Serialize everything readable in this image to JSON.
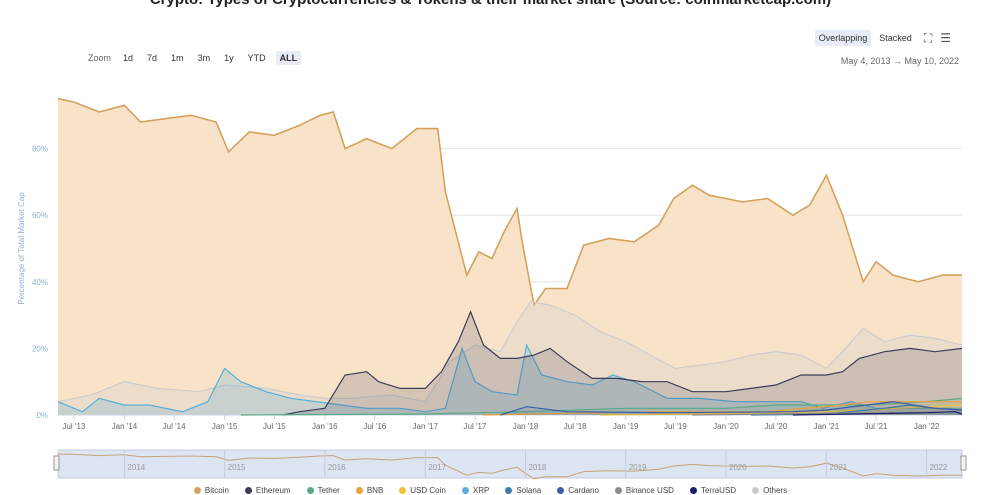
{
  "header": {
    "title": "Crypto: Types of Cryptocurrencies & Tokens & their market share (Source: coinmarketcap.com)"
  },
  "toolbar": {
    "zoom_label": "Zoom",
    "zoom_options": [
      "1d",
      "7d",
      "1m",
      "3m",
      "1y",
      "YTD",
      "ALL"
    ],
    "zoom_selected": "ALL",
    "range_text": "May 4, 2013  →  May 10, 2022",
    "mode_overlapping": "Overlapping",
    "mode_stacked": "Stacked",
    "mode_selected": "Overlapping",
    "fullscreen_icon": "expand-icon",
    "menu_icon": "hamburger-icon"
  },
  "chart_data": {
    "type": "area",
    "ylabel": "Percentage of Total Market Cap",
    "ylim": [
      0,
      100
    ],
    "yticks": [
      "0%",
      "20%",
      "40%",
      "60%",
      "80%"
    ],
    "xticks": [
      "Jul '13",
      "Jan '14",
      "Jul '14",
      "Jan '15",
      "Jul '15",
      "Jan '16",
      "Jul '16",
      "Jan '17",
      "Jul '17",
      "Jan '18",
      "Jul '18",
      "Jan '19",
      "Jul '19",
      "Jan '20",
      "Jul '20",
      "Jan '21",
      "Jul '21",
      "Jan '22"
    ],
    "xrange": [
      "2013-05-04",
      "2022-05-10"
    ],
    "grid": true,
    "navigator_labels": [
      "2014",
      "2015",
      "2016",
      "2017",
      "2018",
      "2019",
      "2020",
      "2021",
      "2022"
    ],
    "series": [
      {
        "name": "Bitcoin",
        "color": "#d4a25f",
        "fill": "#f8e3c9",
        "points": [
          [
            "2013-05-04",
            95
          ],
          [
            "2013-07-01",
            94
          ],
          [
            "2013-10-01",
            91
          ],
          [
            "2014-01-01",
            93
          ],
          [
            "2014-03-01",
            88
          ],
          [
            "2014-06-01",
            89
          ],
          [
            "2014-09-01",
            90
          ],
          [
            "2014-12-01",
            88
          ],
          [
            "2015-01-15",
            79
          ],
          [
            "2015-04-01",
            85
          ],
          [
            "2015-07-01",
            84
          ],
          [
            "2015-10-01",
            87
          ],
          [
            "2015-12-15",
            90
          ],
          [
            "2016-02-01",
            91
          ],
          [
            "2016-03-15",
            80
          ],
          [
            "2016-06-01",
            83
          ],
          [
            "2016-09-01",
            80
          ],
          [
            "2016-12-01",
            86
          ],
          [
            "2017-02-15",
            86
          ],
          [
            "2017-03-15",
            67
          ],
          [
            "2017-06-01",
            42
          ],
          [
            "2017-07-15",
            49
          ],
          [
            "2017-09-01",
            47
          ],
          [
            "2017-10-15",
            55
          ],
          [
            "2017-12-01",
            62
          ],
          [
            "2017-12-20",
            52
          ],
          [
            "2018-02-01",
            33
          ],
          [
            "2018-03-15",
            38
          ],
          [
            "2018-06-01",
            38
          ],
          [
            "2018-08-01",
            51
          ],
          [
            "2018-11-01",
            53
          ],
          [
            "2019-02-01",
            52
          ],
          [
            "2019-05-01",
            57
          ],
          [
            "2019-06-25",
            65
          ],
          [
            "2019-09-01",
            69
          ],
          [
            "2019-11-01",
            66
          ],
          [
            "2020-01-01",
            65
          ],
          [
            "2020-03-01",
            64
          ],
          [
            "2020-06-01",
            65
          ],
          [
            "2020-09-01",
            60
          ],
          [
            "2020-11-01",
            63
          ],
          [
            "2021-01-01",
            72
          ],
          [
            "2021-03-01",
            60
          ],
          [
            "2021-05-15",
            40
          ],
          [
            "2021-07-01",
            46
          ],
          [
            "2021-09-01",
            42
          ],
          [
            "2021-12-01",
            40
          ],
          [
            "2022-03-01",
            42
          ],
          [
            "2022-05-10",
            42
          ]
        ]
      },
      {
        "name": "Ethereum",
        "color": "#3c3c5a",
        "fill": "rgba(60,60,90,0.18)",
        "points": [
          [
            "2015-08-01",
            0
          ],
          [
            "2015-10-01",
            1
          ],
          [
            "2016-01-01",
            2
          ],
          [
            "2016-03-15",
            12
          ],
          [
            "2016-06-01",
            13
          ],
          [
            "2016-07-15",
            10
          ],
          [
            "2016-10-01",
            8
          ],
          [
            "2017-01-01",
            8
          ],
          [
            "2017-03-01",
            13
          ],
          [
            "2017-05-01",
            22
          ],
          [
            "2017-06-15",
            31
          ],
          [
            "2017-08-01",
            21
          ],
          [
            "2017-10-01",
            17
          ],
          [
            "2017-12-01",
            17
          ],
          [
            "2018-02-01",
            18
          ],
          [
            "2018-04-01",
            20
          ],
          [
            "2018-06-01",
            16
          ],
          [
            "2018-09-01",
            11
          ],
          [
            "2018-12-01",
            11
          ],
          [
            "2019-03-01",
            10
          ],
          [
            "2019-06-01",
            10
          ],
          [
            "2019-09-01",
            7
          ],
          [
            "2020-01-01",
            7
          ],
          [
            "2020-04-01",
            8
          ],
          [
            "2020-07-01",
            9
          ],
          [
            "2020-10-01",
            12
          ],
          [
            "2021-01-01",
            12
          ],
          [
            "2021-03-01",
            13
          ],
          [
            "2021-05-01",
            17
          ],
          [
            "2021-08-01",
            19
          ],
          [
            "2021-11-01",
            20
          ],
          [
            "2022-02-01",
            19
          ],
          [
            "2022-05-10",
            20
          ]
        ]
      },
      {
        "name": "Tether",
        "color": "#59a985",
        "fill": "rgba(89,169,133,0.12)",
        "points": [
          [
            "2015-03-01",
            0
          ],
          [
            "2017-01-01",
            0.3
          ],
          [
            "2018-01-01",
            1
          ],
          [
            "2019-01-01",
            2
          ],
          [
            "2020-01-01",
            2
          ],
          [
            "2020-07-01",
            3
          ],
          [
            "2021-01-01",
            3
          ],
          [
            "2021-06-01",
            3
          ],
          [
            "2022-01-01",
            4
          ],
          [
            "2022-05-10",
            5
          ]
        ]
      },
      {
        "name": "BNB",
        "color": "#e8a33b",
        "fill": "rgba(232,163,59,0.10)",
        "points": [
          [
            "2017-08-01",
            0
          ],
          [
            "2018-06-01",
            0.5
          ],
          [
            "2019-06-01",
            1
          ],
          [
            "2020-06-01",
            1
          ],
          [
            "2021-03-01",
            3
          ],
          [
            "2021-06-01",
            4
          ],
          [
            "2022-01-01",
            4
          ],
          [
            "2022-05-10",
            4
          ]
        ]
      },
      {
        "name": "USD Coin",
        "color": "#f0c23b",
        "fill": "rgba(240,194,59,0.10)",
        "points": [
          [
            "2018-10-01",
            0
          ],
          [
            "2020-06-01",
            0.5
          ],
          [
            "2021-01-01",
            1
          ],
          [
            "2021-06-01",
            1.5
          ],
          [
            "2022-01-01",
            2.5
          ],
          [
            "2022-05-10",
            3
          ]
        ]
      },
      {
        "name": "XRP",
        "color": "#5aaed8",
        "fill": "rgba(90,174,216,0.25)",
        "points": [
          [
            "2013-05-04",
            4
          ],
          [
            "2013-08-01",
            1
          ],
          [
            "2013-10-01",
            5
          ],
          [
            "2014-01-01",
            3
          ],
          [
            "2014-04-01",
            3
          ],
          [
            "2014-08-01",
            1
          ],
          [
            "2014-11-01",
            4
          ],
          [
            "2015-01-01",
            14
          ],
          [
            "2015-03-01",
            10
          ],
          [
            "2015-06-01",
            7
          ],
          [
            "2015-09-01",
            5
          ],
          [
            "2015-12-01",
            4
          ],
          [
            "2016-03-01",
            3
          ],
          [
            "2016-06-01",
            2
          ],
          [
            "2016-10-01",
            2
          ],
          [
            "2017-01-01",
            1
          ],
          [
            "2017-03-15",
            2
          ],
          [
            "2017-05-15",
            20
          ],
          [
            "2017-07-01",
            10
          ],
          [
            "2017-09-01",
            7
          ],
          [
            "2017-12-01",
            6
          ],
          [
            "2018-01-05",
            21
          ],
          [
            "2018-03-01",
            12
          ],
          [
            "2018-06-01",
            10
          ],
          [
            "2018-09-01",
            9
          ],
          [
            "2018-11-15",
            12
          ],
          [
            "2019-02-01",
            10
          ],
          [
            "2019-06-01",
            5
          ],
          [
            "2019-10-01",
            5
          ],
          [
            "2020-02-01",
            4
          ],
          [
            "2020-06-01",
            4
          ],
          [
            "2020-10-01",
            4
          ],
          [
            "2020-12-20",
            2
          ],
          [
            "2021-04-01",
            4
          ],
          [
            "2021-07-01",
            2
          ],
          [
            "2022-01-01",
            2
          ],
          [
            "2022-05-10",
            2
          ]
        ]
      },
      {
        "name": "Solana",
        "color": "#3e7ea6",
        "fill": "rgba(62,126,166,0.10)",
        "points": [
          [
            "2020-04-01",
            0
          ],
          [
            "2021-01-01",
            0.3
          ],
          [
            "2021-08-01",
            2
          ],
          [
            "2021-11-01",
            3
          ],
          [
            "2022-02-01",
            2
          ],
          [
            "2022-05-10",
            1.5
          ]
        ]
      },
      {
        "name": "Cardano",
        "color": "#3b5da8",
        "fill": "rgba(59,93,168,0.10)",
        "points": [
          [
            "2017-10-01",
            0
          ],
          [
            "2018-01-05",
            2.5
          ],
          [
            "2018-06-01",
            1
          ],
          [
            "2019-06-01",
            0.7
          ],
          [
            "2020-09-01",
            1
          ],
          [
            "2021-01-01",
            1.5
          ],
          [
            "2021-09-01",
            4
          ],
          [
            "2022-02-01",
            2
          ],
          [
            "2022-05-10",
            1.5
          ]
        ]
      },
      {
        "name": "Binance USD",
        "color": "#8c8c8c",
        "fill": "rgba(140,140,140,0.08)",
        "points": [
          [
            "2019-09-01",
            0
          ],
          [
            "2021-01-01",
            0.5
          ],
          [
            "2022-01-01",
            0.8
          ],
          [
            "2022-05-10",
            1
          ]
        ]
      },
      {
        "name": "TerraUSD",
        "color": "#1a1f6e",
        "fill": "rgba(26,31,110,0.10)",
        "points": [
          [
            "2020-09-01",
            0
          ],
          [
            "2021-06-01",
            0.4
          ],
          [
            "2022-01-01",
            0.7
          ],
          [
            "2022-04-15",
            1
          ],
          [
            "2022-05-10",
            0.3
          ]
        ]
      },
      {
        "name": "Others",
        "color": "#cccccc",
        "fill": "rgba(210,210,210,0.30)",
        "points": [
          [
            "2013-05-04",
            4
          ],
          [
            "2013-09-01",
            6
          ],
          [
            "2014-01-01",
            10
          ],
          [
            "2014-05-01",
            8
          ],
          [
            "2014-10-01",
            7
          ],
          [
            "2015-01-01",
            9
          ],
          [
            "2015-06-01",
            8
          ],
          [
            "2015-10-01",
            6
          ],
          [
            "2016-01-01",
            5
          ],
          [
            "2016-04-01",
            5
          ],
          [
            "2016-09-01",
            6
          ],
          [
            "2017-01-01",
            4
          ],
          [
            "2017-04-01",
            16
          ],
          [
            "2017-07-01",
            21
          ],
          [
            "2017-10-01",
            19
          ],
          [
            "2017-12-01",
            28
          ],
          [
            "2018-01-20",
            34
          ],
          [
            "2018-04-01",
            33
          ],
          [
            "2018-07-01",
            30
          ],
          [
            "2018-10-01",
            25
          ],
          [
            "2019-01-01",
            22
          ],
          [
            "2019-04-01",
            18
          ],
          [
            "2019-07-01",
            14
          ],
          [
            "2019-10-01",
            15
          ],
          [
            "2020-01-01",
            16
          ],
          [
            "2020-04-01",
            18
          ],
          [
            "2020-07-01",
            19
          ],
          [
            "2020-10-01",
            18
          ],
          [
            "2021-01-01",
            14
          ],
          [
            "2021-03-01",
            19
          ],
          [
            "2021-05-15",
            26
          ],
          [
            "2021-08-01",
            22
          ],
          [
            "2021-11-01",
            24
          ],
          [
            "2022-02-01",
            23
          ],
          [
            "2022-05-10",
            21
          ]
        ]
      }
    ]
  }
}
